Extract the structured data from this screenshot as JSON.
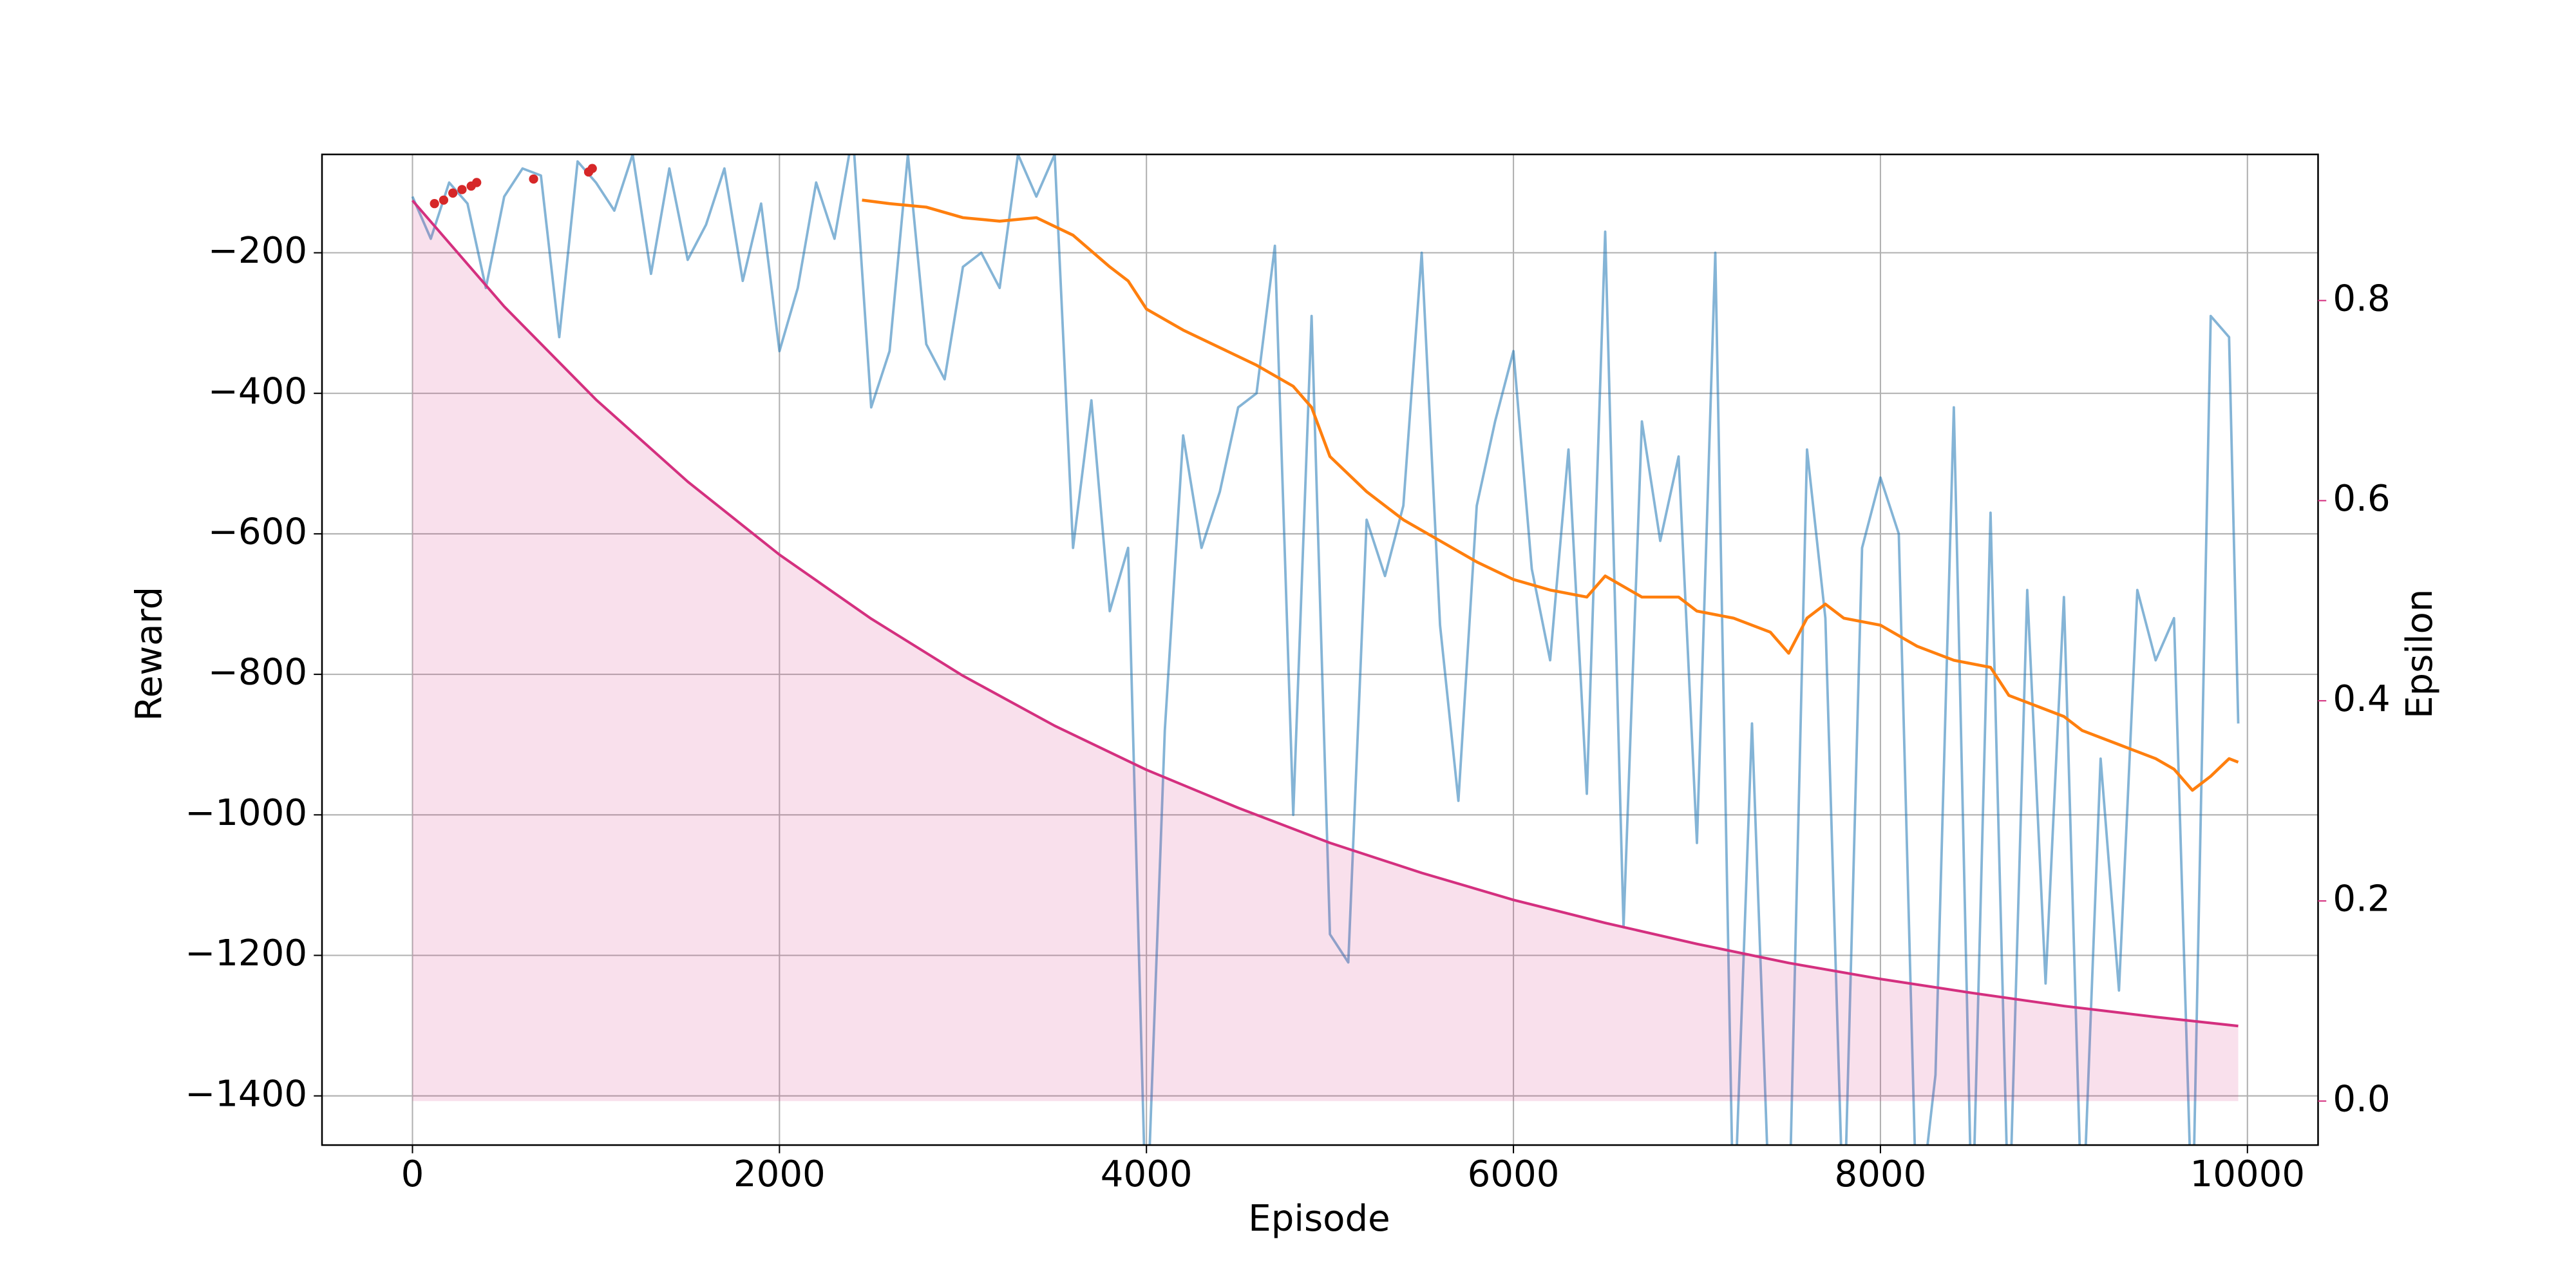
{
  "chart_data": {
    "type": "line",
    "xlabel": "Episode",
    "ylabel": "Reward",
    "y2label": "Epsilon",
    "xlim": [
      -493,
      10385
    ],
    "ylim": [
      -1470,
      -60
    ],
    "y2lim": [
      -0.044,
      0.946
    ],
    "xticks": [
      0,
      2000,
      4000,
      6000,
      8000,
      10000
    ],
    "yticks": [
      {
        "value": -1400,
        "label": "−1400"
      },
      {
        "value": -1200,
        "label": "−1200"
      },
      {
        "value": -1000,
        "label": "−1000"
      },
      {
        "value": -800,
        "label": "−800"
      },
      {
        "value": -600,
        "label": "−600"
      },
      {
        "value": -400,
        "label": "−400"
      },
      {
        "value": -200,
        "label": "−200"
      }
    ],
    "y2ticks": [
      {
        "value": 0,
        "label": "0.0"
      },
      0.2,
      0.4,
      0.6,
      0.8
    ],
    "y2color": "#d4307f",
    "grid": true,
    "series": [
      {
        "color": "#1f77b4",
        "opacity": 0.55,
        "width": 1.5,
        "x": [
          0,
          100,
          200,
          300,
          400,
          500,
          600,
          700,
          800,
          900,
          1000,
          1100,
          1200,
          1300,
          1400,
          1500,
          1600,
          1700,
          1800,
          1900,
          2000,
          2100,
          2200,
          2300,
          2400,
          2500,
          2600,
          2700,
          2800,
          2900,
          3000,
          3100,
          3200,
          3300,
          3400,
          3500,
          3600,
          3700,
          3800,
          3900,
          4000,
          4100,
          4200,
          4300,
          4400,
          4500,
          4600,
          4700,
          4800,
          4900,
          5000,
          5100,
          5200,
          5300,
          5400,
          5500,
          5600,
          5700,
          5800,
          5900,
          6000,
          6100,
          6200,
          6300,
          6400,
          6500,
          6600,
          6700,
          6800,
          6900,
          7000,
          7100,
          7200,
          7300,
          7400,
          7500,
          7600,
          7700,
          7800,
          7900,
          8000,
          8100,
          8200,
          8300,
          8400,
          8500,
          8600,
          8700,
          8800,
          8900,
          9000,
          9100,
          9200,
          9300,
          9400,
          9500,
          9600,
          9700,
          9800,
          9900,
          9950
        ],
        "values": [
          -120,
          -180,
          -100,
          -130,
          -250,
          -120,
          -80,
          -90,
          -320,
          -70,
          -100,
          -140,
          -60,
          -230,
          -80,
          -210,
          -160,
          -80,
          -240,
          -130,
          -340,
          -250,
          -100,
          -180,
          -30,
          -420,
          -340,
          -60,
          -330,
          -380,
          -220,
          -200,
          -250,
          -60,
          -120,
          -60,
          -620,
          -410,
          -710,
          -620,
          -1600,
          -880,
          -460,
          -620,
          -540,
          -420,
          -400,
          -190,
          -1000,
          -290,
          -1170,
          -1210,
          -580,
          -660,
          -560,
          -200,
          -730,
          -980,
          -560,
          -440,
          -340,
          -650,
          -780,
          -480,
          -970,
          -170,
          -1160,
          -440,
          -610,
          -490,
          -1040,
          -200,
          -1600,
          -870,
          -1600,
          -1600,
          -480,
          -720,
          -1600,
          -620,
          -520,
          -600,
          -1600,
          -1370,
          -420,
          -1600,
          -570,
          -1600,
          -680,
          -1240,
          -690,
          -1600,
          -920,
          -1250,
          -680,
          -780,
          -720,
          -1600,
          -290,
          -320,
          -870
        ]
      },
      {
        "color": "#ff7f0e",
        "opacity": 1,
        "width": 1.8,
        "x": [
          2450,
          2600,
          2800,
          3000,
          3200,
          3400,
          3600,
          3800,
          3900,
          4000,
          4200,
          4400,
          4600,
          4800,
          4900,
          5000,
          5200,
          5400,
          5600,
          5800,
          6000,
          6200,
          6400,
          6500,
          6700,
          6900,
          7000,
          7200,
          7400,
          7500,
          7600,
          7700,
          7800,
          8000,
          8200,
          8400,
          8600,
          8700,
          8800,
          9000,
          9100,
          9300,
          9500,
          9600,
          9700,
          9800,
          9900,
          9950
        ],
        "values": [
          -125,
          -130,
          -135,
          -150,
          -155,
          -150,
          -175,
          -220,
          -240,
          -280,
          -310,
          -335,
          -360,
          -390,
          -420,
          -490,
          -540,
          -580,
          -610,
          -640,
          -665,
          -680,
          -690,
          -660,
          -690,
          -690,
          -710,
          -720,
          -740,
          -770,
          -720,
          -700,
          -720,
          -730,
          -760,
          -780,
          -790,
          -830,
          -840,
          -860,
          -880,
          -900,
          -920,
          -935,
          -965,
          -945,
          -920,
          -925
        ]
      },
      {
        "color": "#d4307f",
        "opacity": 1,
        "width": 1.6,
        "axis": "y2",
        "fill": true,
        "x": [
          0,
          500,
          1000,
          1500,
          2000,
          2500,
          3000,
          3500,
          4000,
          4500,
          5000,
          5500,
          6000,
          6500,
          7000,
          7500,
          8000,
          8500,
          9000,
          9500,
          9950
        ],
        "values": [
          0.9,
          0.794,
          0.701,
          0.619,
          0.546,
          0.482,
          0.425,
          0.375,
          0.331,
          0.293,
          0.258,
          0.228,
          0.201,
          0.178,
          0.157,
          0.138,
          0.122,
          0.108,
          0.095,
          0.084,
          0.075
        ]
      },
      {
        "color": "#d62728",
        "kind": "scatter",
        "x": [
          120,
          170,
          220,
          270,
          320,
          350,
          660,
          960,
          980
        ],
        "values": [
          -130,
          -125,
          -115,
          -110,
          -105,
          -100,
          -95,
          -85,
          -80
        ]
      }
    ]
  }
}
